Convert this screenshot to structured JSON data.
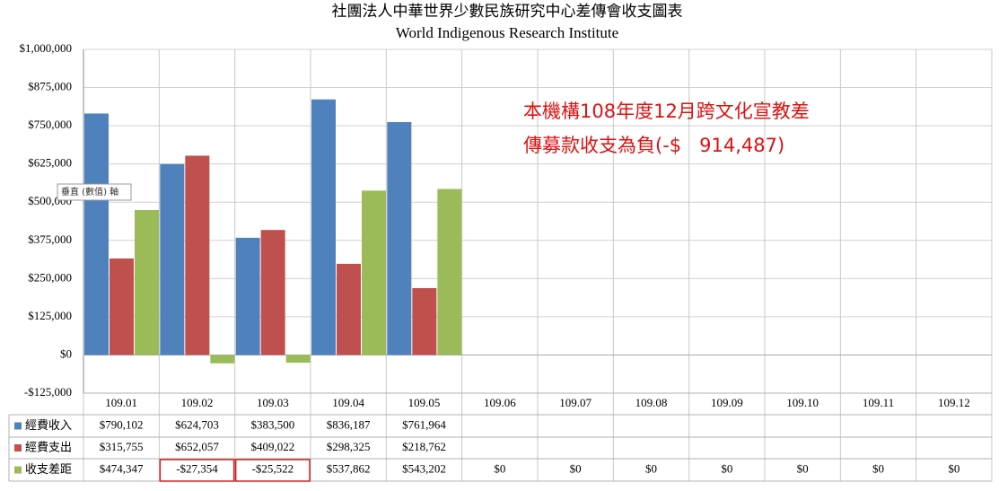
{
  "chart_data": {
    "type": "bar",
    "title": "社團法人中華世界少數民族研究中心差傳會收支圖表",
    "subtitle": "World Indigenous Research Institute",
    "categories": [
      "109.01",
      "109.02",
      "109.03",
      "109.04",
      "109.05",
      "109.06",
      "109.07",
      "109.08",
      "109.09",
      "109.10",
      "109.11",
      "109.12"
    ],
    "series": [
      {
        "name": "經費收入",
        "color": "#4f81bd",
        "values": [
          790102,
          624703,
          383500,
          836187,
          761964,
          null,
          null,
          null,
          null,
          null,
          null,
          null
        ],
        "value_labels": [
          "$790,102",
          "$624,703",
          "$383,500",
          "$836,187",
          "$761,964",
          null,
          null,
          null,
          null,
          null,
          null,
          null
        ]
      },
      {
        "name": "經費支出",
        "color": "#c0504d",
        "values": [
          315755,
          652057,
          409022,
          298325,
          218762,
          null,
          null,
          null,
          null,
          null,
          null,
          null
        ],
        "value_labels": [
          "$315,755",
          "$652,057",
          "$409,022",
          "$298,325",
          "$218,762",
          null,
          null,
          null,
          null,
          null,
          null,
          null
        ]
      },
      {
        "name": "收支差距",
        "color": "#9bbb59",
        "values": [
          474347,
          -27354,
          -25522,
          537862,
          543202,
          0,
          0,
          0,
          0,
          0,
          0,
          0
        ],
        "value_labels": [
          "$474,347",
          "-$27,354",
          "-$25,522",
          "$537,862",
          "$543,202",
          "$0",
          "$0",
          "$0",
          "$0",
          "$0",
          "$0",
          "$0"
        ]
      }
    ],
    "ylim": [
      -125000,
      1000000
    ],
    "yticks": [
      {
        "value": -125000,
        "label": "-$125,000"
      },
      {
        "value": 0,
        "label": "$0"
      },
      {
        "value": 125000,
        "label": "$125,000"
      },
      {
        "value": 250000,
        "label": "$250,000"
      },
      {
        "value": 375000,
        "label": "$375,000"
      },
      {
        "value": 500000,
        "label": "$500,000"
      },
      {
        "value": 625000,
        "label": "$625,000"
      },
      {
        "value": 750000,
        "label": "$750,000"
      },
      {
        "value": 875000,
        "label": "$875,000"
      },
      {
        "value": 1000000,
        "label": "$1,000,000"
      }
    ],
    "grid": true,
    "annotations": [
      "本機構108年度12月跨文化宣教差",
      "傳募款收支為負(-$   914,487)"
    ],
    "tooltip": "垂直 (數值) 軸"
  }
}
